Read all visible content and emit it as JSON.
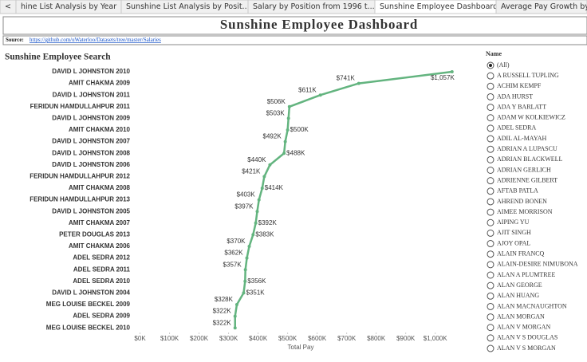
{
  "tabs": [
    "<",
    "hine List Analysis by Year",
    "Sunshine List Analysis by Posit...",
    "Salary by Position from 1996 t...",
    "Sunshine Employee Dashboard",
    "Average Pay Growth by I"
  ],
  "active_tab": 4,
  "header": {
    "title": "Sunshine Employee Dashboard"
  },
  "source": {
    "label": "Source:",
    "link": "https://github.com/uWaterloo/Datasets/tree/master/Salaries"
  },
  "chart_data": {
    "type": "line",
    "orientation": "horizontal",
    "title": "Sunshine Employee Search",
    "x_label": "Total Pay",
    "color": "#63b47f",
    "grid": false,
    "categories": [
      "DAVID L JOHNSTON 2010",
      "AMIT CHAKMA 2009",
      "DAVID L JOHNSTON 2011",
      "FERIDUN HAMDULLAHPUR 2011",
      "DAVID L JOHNSTON 2009",
      "AMIT CHAKMA 2010",
      "DAVID L JOHNSTON 2007",
      "DAVID L JOHNSTON 2008",
      "DAVID L JOHNSTON 2006",
      "FERIDUN HAMDULLAHPUR 2012",
      "AMIT CHAKMA 2008",
      "FERIDUN HAMDULLAHPUR 2013",
      "DAVID L JOHNSTON 2005",
      "AMIT CHAKMA 2007",
      "PETER DOUGLAS 2013",
      "AMIT CHAKMA 2006",
      "ADEL SEDRA 2012",
      "ADEL SEDRA 2011",
      "ADEL SEDRA 2010",
      "DAVID L JOHNSTON 2004",
      "MEG LOUISE BECKEL 2009",
      "ADEL SEDRA 2009",
      "MEG LOUISE BECKEL 2010"
    ],
    "values": [
      1057000,
      741000,
      611000,
      506000,
      503000,
      500000,
      492000,
      488000,
      440000,
      421000,
      414000,
      403000,
      397000,
      392000,
      383000,
      370000,
      362000,
      357000,
      356000,
      351000,
      328000,
      322000,
      322000
    ],
    "value_labels": [
      "$1,057K",
      "$741K",
      "$611K",
      "$506K",
      "$503K",
      "$500K",
      "$492K",
      "$488K",
      "$440K",
      "$421K",
      "$414K",
      "$403K",
      "$397K",
      "$392K",
      "$383K",
      "$370K",
      "$362K",
      "$357K",
      "$356K",
      "$351K",
      "$328K",
      "$322K",
      "$322K"
    ],
    "xlim": [
      -15000,
      1090000
    ],
    "xticks": [
      {
        "value": 0,
        "label": "$0K"
      },
      {
        "value": 100000,
        "label": "$100K"
      },
      {
        "value": 200000,
        "label": "$200K"
      },
      {
        "value": 300000,
        "label": "$300K"
      },
      {
        "value": 400000,
        "label": "$400K"
      },
      {
        "value": 500000,
        "label": "$500K"
      },
      {
        "value": 600000,
        "label": "$600K"
      },
      {
        "value": 700000,
        "label": "$700K"
      },
      {
        "value": 800000,
        "label": "$800K"
      },
      {
        "value": 900000,
        "label": "$900K"
      },
      {
        "value": 1000000,
        "label": "$1,000K"
      }
    ]
  },
  "filter": {
    "title": "Name",
    "selected": 0,
    "options": [
      "(All)",
      "A RUSSELL TUPLING",
      "ACHIM KEMPF",
      "ADA HURST",
      "ADA Y BARLATT",
      "ADAM W KOLKIEWICZ",
      "ADEL SEDRA",
      "ADIL AL-MAYAH",
      "ADRIAN A LUPASCU",
      "ADRIAN BLACKWELL",
      "ADRIAN GERLICH",
      "ADRIENNE GILBERT",
      "AFTAB PATLA",
      "AHREND BONEN",
      "AIMEE MORRISON",
      "AIPING YU",
      "AJIT SINGH",
      "AJOY OPAL",
      "ALAIN FRANCQ",
      "ALAIN-DESIRE NIMUBONA",
      "ALAN A PLUMTREE",
      "ALAN GEORGE",
      "ALAN HUANG",
      "ALAN MACNAUGHTON",
      "ALAN MORGAN",
      "ALAN V MORGAN",
      "ALAN V S DOUGLAS",
      "ALAN V S MORGAN"
    ]
  }
}
